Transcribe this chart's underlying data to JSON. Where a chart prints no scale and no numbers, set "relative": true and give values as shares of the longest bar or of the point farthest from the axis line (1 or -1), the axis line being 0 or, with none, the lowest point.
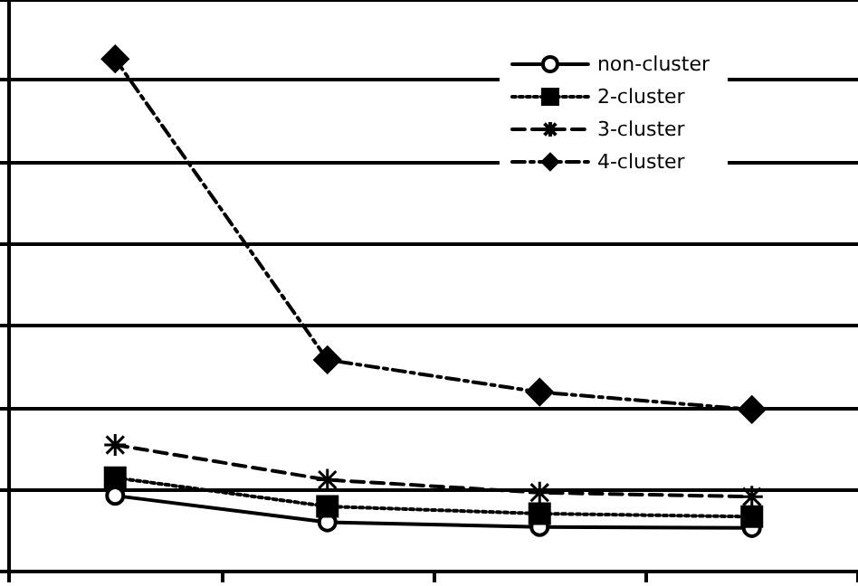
{
  "chart_data": {
    "type": "line",
    "relative": true,
    "categories": [
      null,
      null,
      null,
      null
    ],
    "grid": "y",
    "legend": "top right",
    "series": [
      {
        "name": "non-cluster",
        "color": "#000000",
        "marker": "circle",
        "line_style": "solid",
        "values": [
          0.148,
          0.096,
          0.087,
          0.085
        ]
      },
      {
        "name": "2-cluster",
        "color": "#000000",
        "marker": "square",
        "line_style": "dotted",
        "values": [
          0.183,
          0.127,
          0.113,
          0.107
        ]
      },
      {
        "name": "3-cluster",
        "color": "#000000",
        "marker": "cross",
        "line_style": "dashed",
        "values": [
          0.247,
          0.179,
          0.154,
          0.146
        ]
      },
      {
        "name": "4-cluster",
        "color": "#000000",
        "marker": "diamond",
        "line_style": "dashdot",
        "values": [
          1,
          0.413,
          0.35,
          0.316
        ]
      }
    ]
  }
}
